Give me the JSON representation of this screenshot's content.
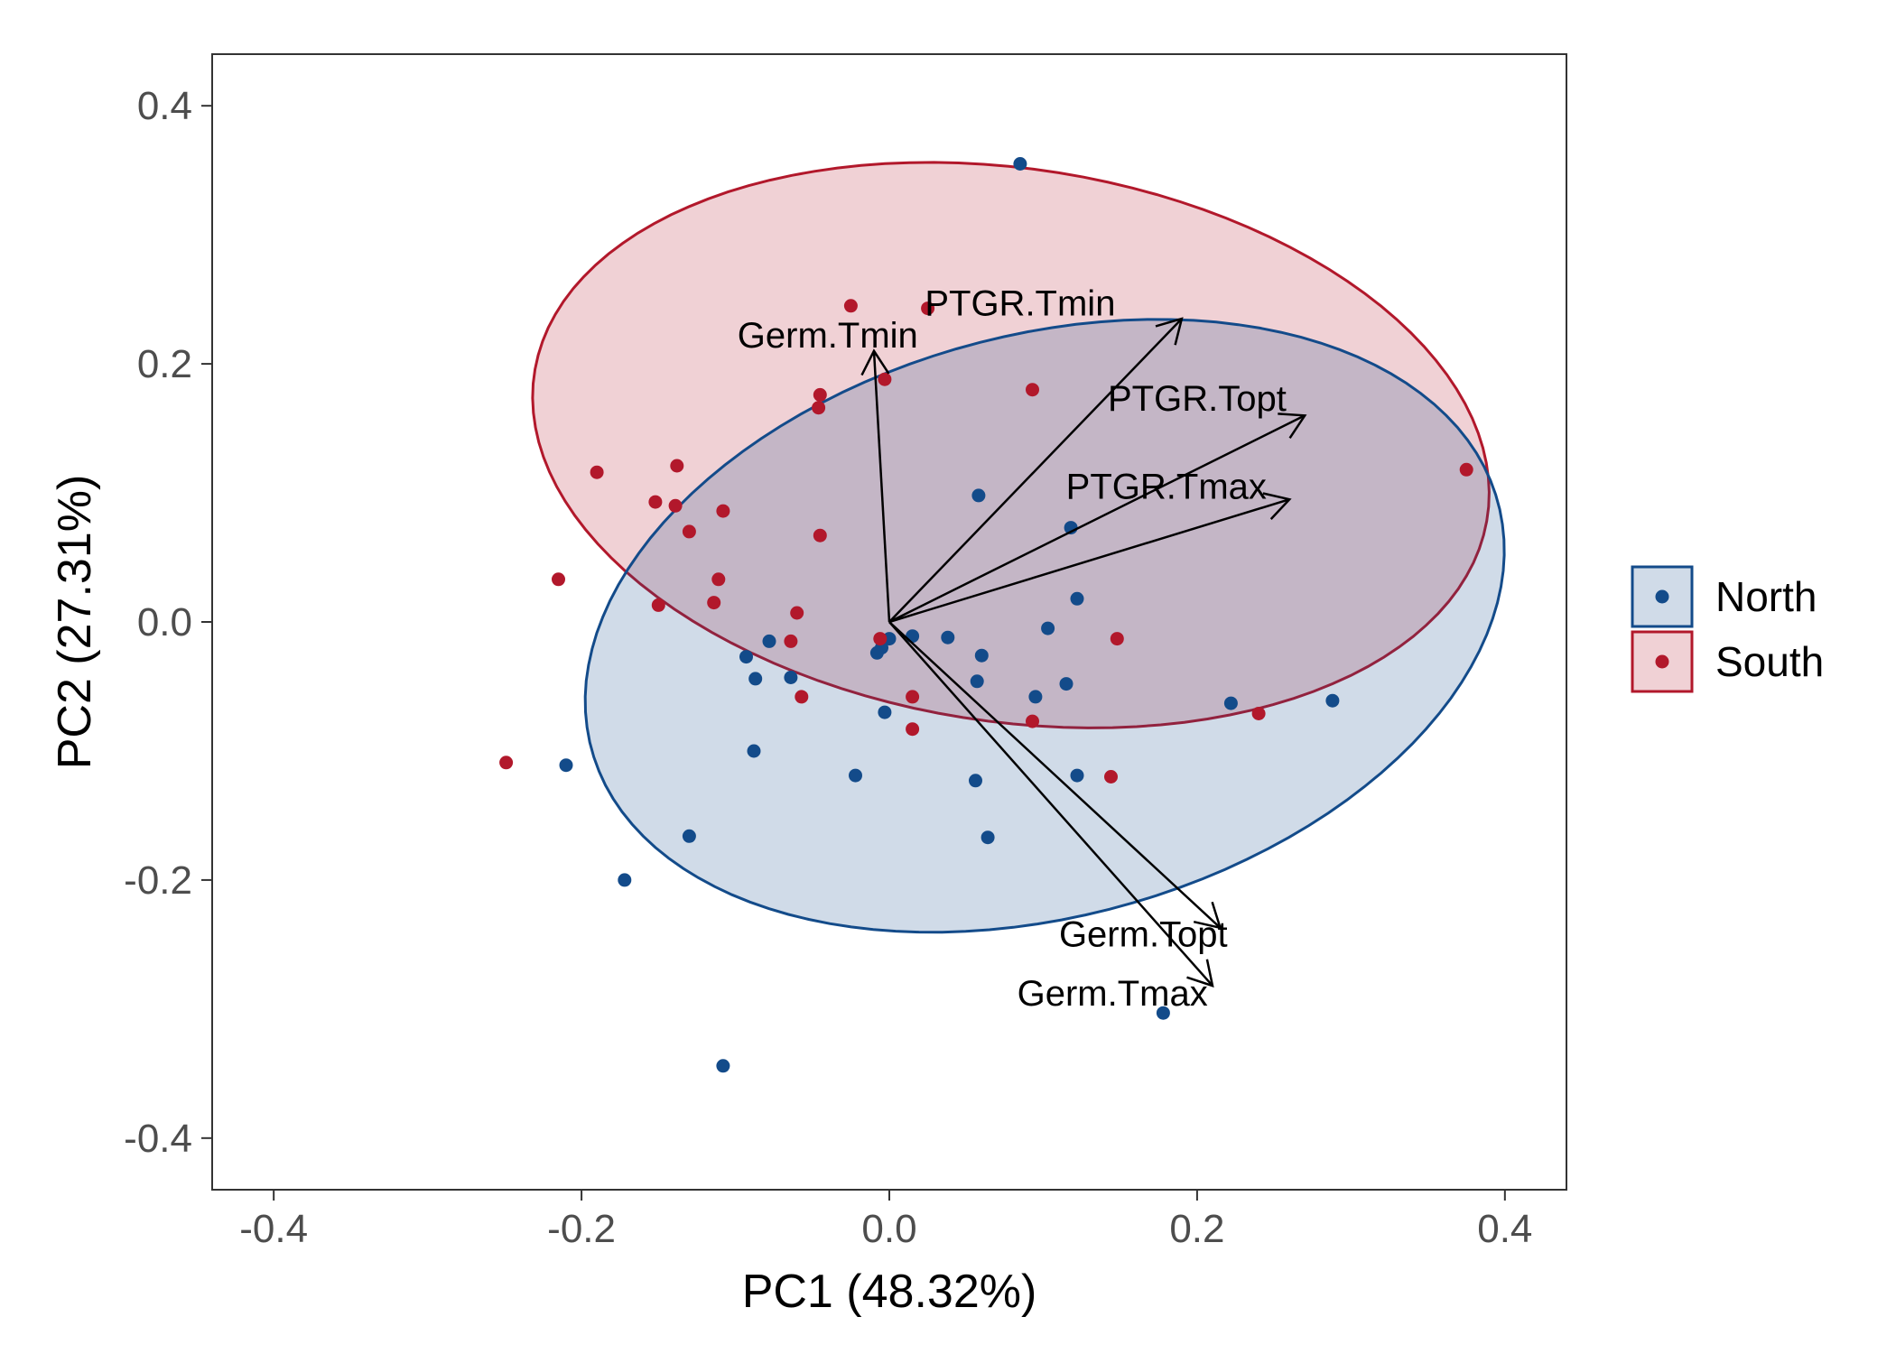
{
  "chart_data": {
    "type": "scatter",
    "subtype": "pca-biplot",
    "title": "",
    "xlabel": "PC1 (48.32%)",
    "ylabel": "PC2 (27.31%)",
    "xlim": [
      -0.44,
      0.44
    ],
    "ylim": [
      -0.44,
      0.44
    ],
    "x_ticks": [
      -0.4,
      -0.2,
      0.0,
      0.2,
      0.4
    ],
    "x_tick_labels": [
      "-0.4",
      "-0.2",
      "0.0",
      "0.2",
      "0.4"
    ],
    "y_ticks": [
      -0.4,
      -0.2,
      0.0,
      0.2,
      0.4
    ],
    "y_tick_labels": [
      "-0.4",
      "-0.2",
      "0.0",
      "0.2",
      "0.4"
    ],
    "grid": false,
    "legend_position": "right",
    "series": [
      {
        "name": "North",
        "color": "#134b8a",
        "points": [
          [
            0.085,
            0.355
          ],
          [
            -0.108,
            -0.344
          ],
          [
            0.178,
            -0.303
          ],
          [
            -0.172,
            -0.2
          ],
          [
            -0.21,
            -0.111
          ],
          [
            -0.13,
            -0.166
          ],
          [
            0.288,
            -0.061
          ],
          [
            0.222,
            -0.063
          ],
          [
            0.058,
            0.098
          ],
          [
            0.118,
            0.073
          ],
          [
            0.122,
            0.018
          ],
          [
            0.103,
            -0.005
          ],
          [
            0.0,
            -0.013
          ],
          [
            0.06,
            -0.026
          ],
          [
            0.038,
            -0.012
          ],
          [
            0.015,
            -0.011
          ],
          [
            -0.005,
            -0.02
          ],
          [
            -0.008,
            -0.024
          ],
          [
            -0.078,
            -0.015
          ],
          [
            -0.093,
            -0.027
          ],
          [
            -0.087,
            -0.044
          ],
          [
            -0.064,
            -0.043
          ],
          [
            -0.003,
            -0.07
          ],
          [
            0.057,
            -0.046
          ],
          [
            0.095,
            -0.058
          ],
          [
            0.115,
            -0.048
          ],
          [
            -0.088,
            -0.1
          ],
          [
            -0.022,
            -0.119
          ],
          [
            0.056,
            -0.123
          ],
          [
            0.122,
            -0.119
          ],
          [
            0.064,
            -0.167
          ]
        ]
      },
      {
        "name": "South",
        "color": "#b2182b",
        "points": [
          [
            0.375,
            0.118
          ],
          [
            -0.025,
            0.245
          ],
          [
            0.025,
            0.243
          ],
          [
            -0.003,
            0.188
          ],
          [
            0.093,
            0.18
          ],
          [
            -0.045,
            0.176
          ],
          [
            -0.046,
            0.166
          ],
          [
            -0.19,
            0.116
          ],
          [
            -0.138,
            0.121
          ],
          [
            -0.152,
            0.093
          ],
          [
            -0.139,
            0.09
          ],
          [
            -0.108,
            0.086
          ],
          [
            -0.13,
            0.07
          ],
          [
            -0.045,
            0.067
          ],
          [
            -0.215,
            0.033
          ],
          [
            -0.111,
            0.033
          ],
          [
            -0.114,
            0.015
          ],
          [
            -0.15,
            0.013
          ],
          [
            -0.06,
            0.007
          ],
          [
            -0.064,
            -0.015
          ],
          [
            -0.006,
            -0.013
          ],
          [
            0.148,
            -0.013
          ],
          [
            -0.057,
            -0.058
          ],
          [
            0.015,
            -0.058
          ],
          [
            0.093,
            -0.077
          ],
          [
            0.015,
            -0.083
          ],
          [
            0.24,
            -0.071
          ],
          [
            0.144,
            -0.12
          ],
          [
            -0.249,
            -0.109
          ]
        ]
      }
    ],
    "ellipses": [
      {
        "name": "South",
        "color": "#b2182b",
        "fill": "#b2182b",
        "fill_opacity": 0.2,
        "center": [
          0.079,
          0.137
        ],
        "semi_axes": [
          0.315,
          0.213
        ],
        "angle_deg": -12.8
      },
      {
        "name": "North",
        "color": "#134b8a",
        "fill": "#134b8a",
        "fill_opacity": 0.2,
        "center": [
          0.101,
          -0.003
        ],
        "semi_axes": [
          0.311,
          0.221
        ],
        "angle_deg": 23.4
      }
    ],
    "vectors": [
      {
        "name": "PTGR.Tmin",
        "x": 0.19,
        "y": 0.235,
        "label_x": 0.085,
        "label_y": 0.245
      },
      {
        "name": "Germ.Tmin",
        "x": -0.01,
        "y": 0.21,
        "label_x": -0.04,
        "label_y": 0.22
      },
      {
        "name": "PTGR.Topt",
        "x": 0.27,
        "y": 0.16,
        "label_x": 0.2,
        "label_y": 0.171
      },
      {
        "name": "PTGR.Tmax",
        "x": 0.26,
        "y": 0.095,
        "label_x": 0.18,
        "label_y": 0.103
      },
      {
        "name": "Germ.Topt",
        "x": 0.215,
        "y": -0.237,
        "label_x": 0.165,
        "label_y": -0.244
      },
      {
        "name": "Germ.Tmax",
        "x": 0.21,
        "y": -0.282,
        "label_x": 0.145,
        "label_y": -0.29
      }
    ],
    "legend": [
      {
        "name": "North",
        "color": "#134b8a"
      },
      {
        "name": "South",
        "color": "#b2182b"
      }
    ]
  }
}
